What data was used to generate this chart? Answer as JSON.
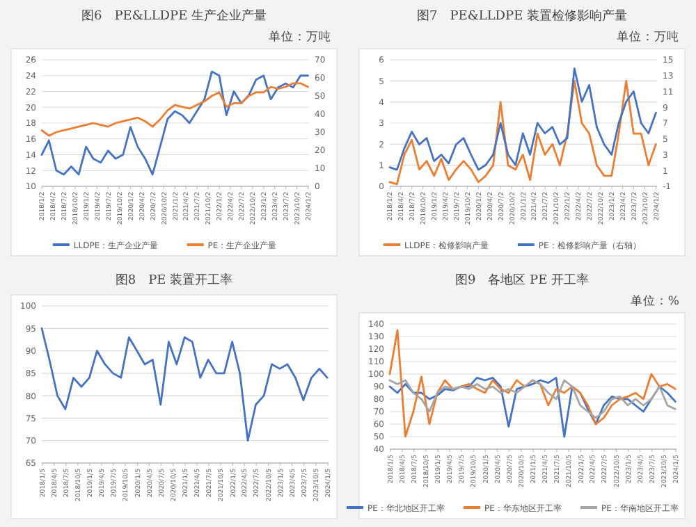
{
  "chart_data": [
    {
      "type": "line",
      "title": "图6　PE&LLDPE 生产企业产量",
      "subtitle": "单位：万吨",
      "grid": "y",
      "legend": "bottom",
      "x": [
        "2018-01",
        "2018-03",
        "2018-05",
        "2018-07",
        "2018-09",
        "2018-11",
        "2019-01",
        "2019-03",
        "2019-05",
        "2019-07",
        "2019-09",
        "2019-11",
        "2020-01",
        "2020-03",
        "2020-05",
        "2020-07",
        "2020-09",
        "2020-11",
        "2021-01",
        "2021-03",
        "2021-05",
        "2021-07",
        "2021-09",
        "2021-11",
        "2022-01",
        "2022-03",
        "2022-05",
        "2022-07",
        "2022-09",
        "2022-11",
        "2023-01",
        "2023-03",
        "2023-05",
        "2023-07",
        "2023-09",
        "2023-11",
        "2024-01"
      ],
      "xlim": [
        "2018-01-01",
        "2024-01-10"
      ],
      "xticks": [
        {
          "value": "2018-01-02",
          "label": "2018/1/2"
        },
        {
          "value": "2018-04-02",
          "label": "2018/4/2"
        },
        {
          "value": "2018-07-02",
          "label": "2018/7/2"
        },
        {
          "value": "2018-10-02",
          "label": "2018/10/2"
        },
        {
          "value": "2019-01-02",
          "label": "2019/1/2"
        },
        {
          "value": "2019-04-02",
          "label": "2019/4/2"
        },
        {
          "value": "2019-07-02",
          "label": "2019/7/2"
        },
        {
          "value": "2019-10-02",
          "label": "2019/10/2"
        },
        {
          "value": "2020-01-02",
          "label": "2020/1/2"
        },
        {
          "value": "2020-04-02",
          "label": "2020/4/2"
        },
        {
          "value": "2020-07-02",
          "label": "2020/7/2"
        },
        {
          "value": "2020-10-02",
          "label": "2020/10/2"
        },
        {
          "value": "2021-01-02",
          "label": "2021/1/2"
        },
        {
          "value": "2021-04-02",
          "label": "2021/4/2"
        },
        {
          "value": "2021-07-02",
          "label": "2021/7/2"
        },
        {
          "value": "2021-10-02",
          "label": "2021/10/2"
        },
        {
          "value": "2022-01-02",
          "label": "2022/1/2"
        },
        {
          "value": "2022-04-02",
          "label": "2022/4/2"
        },
        {
          "value": "2022-07-02",
          "label": "2022/7/2"
        },
        {
          "value": "2022-10-02",
          "label": "2022/10/2"
        },
        {
          "value": "2023-01-02",
          "label": "2023/1/2"
        },
        {
          "value": "2023-04-02",
          "label": "2023/4/2"
        },
        {
          "value": "2023-07-02",
          "label": "2023/7/2"
        },
        {
          "value": "2023-10-02",
          "label": "2023/10/2"
        },
        {
          "value": "2024-01-02",
          "label": "2024/1/2"
        }
      ],
      "ylim": [
        10,
        26
      ],
      "yticks": [
        10,
        12,
        14,
        16,
        18,
        20,
        22,
        24,
        26
      ],
      "y2lim": [
        0,
        70
      ],
      "y2ticks": [
        0,
        10,
        20,
        30,
        40,
        50,
        60,
        70
      ],
      "series": [
        {
          "name": "LLDPE：生产企业产量",
          "color": "#4472c4",
          "values": [
            14,
            15.8,
            12,
            11.5,
            12.5,
            11.5,
            15,
            13.5,
            13,
            14.5,
            13.5,
            14,
            17.5,
            15,
            13.5,
            11.5,
            15,
            18.5,
            19.5,
            19,
            18,
            19.5,
            21,
            24.5,
            24,
            19,
            22,
            20.5,
            21.5,
            23.5,
            24,
            21,
            22.5,
            23,
            22.5,
            24,
            24
          ]
        },
        {
          "name": "PE：生产企业产量",
          "color": "#ed7d31",
          "axis": "y2",
          "values": [
            31,
            28,
            30,
            31,
            32,
            33,
            34,
            35,
            34,
            33,
            35,
            36,
            37,
            38,
            36,
            33,
            37,
            42,
            45,
            44,
            43,
            45,
            47,
            50,
            52,
            44,
            46,
            46,
            50,
            52,
            52,
            55,
            54,
            55,
            57,
            57,
            55
          ]
        }
      ]
    },
    {
      "type": "line",
      "title": "图7　PE&LLDPE 装置检修影响产量",
      "subtitle": "单位：万吨",
      "grid": "y",
      "legend": "bottom",
      "x": [
        "2018-01",
        "2018-03",
        "2018-05",
        "2018-07",
        "2018-09",
        "2018-11",
        "2019-01",
        "2019-03",
        "2019-05",
        "2019-07",
        "2019-09",
        "2019-11",
        "2020-01",
        "2020-03",
        "2020-05",
        "2020-07",
        "2020-09",
        "2020-11",
        "2021-01",
        "2021-03",
        "2021-05",
        "2021-07",
        "2021-09",
        "2021-11",
        "2022-01",
        "2022-03",
        "2022-05",
        "2022-07",
        "2022-09",
        "2022-11",
        "2023-01",
        "2023-03",
        "2023-05",
        "2023-07",
        "2023-09",
        "2023-11",
        "2024-01"
      ],
      "xlim": [
        "2018-01-01",
        "2024-01-10"
      ],
      "xticks": [
        {
          "value": "2018-01-02",
          "label": "2018/1/2"
        },
        {
          "value": "2018-04-02",
          "label": "2018/4/2"
        },
        {
          "value": "2018-07-02",
          "label": "2018/7/2"
        },
        {
          "value": "2018-10-02",
          "label": "2018/10/2"
        },
        {
          "value": "2019-01-02",
          "label": "2019/1/2"
        },
        {
          "value": "2019-04-02",
          "label": "2019/4/2"
        },
        {
          "value": "2019-07-02",
          "label": "2019/7/2"
        },
        {
          "value": "2019-10-02",
          "label": "2019/10/2"
        },
        {
          "value": "2020-01-02",
          "label": "2020/1/2"
        },
        {
          "value": "2020-04-02",
          "label": "2020/4/2"
        },
        {
          "value": "2020-07-02",
          "label": "2020/7/2"
        },
        {
          "value": "2020-10-02",
          "label": "2020/10/2"
        },
        {
          "value": "2021-01-02",
          "label": "2021/1/2"
        },
        {
          "value": "2021-04-02",
          "label": "2021/4/2"
        },
        {
          "value": "2021-07-02",
          "label": "2021/7/2"
        },
        {
          "value": "2021-10-02",
          "label": "2021/10/2"
        },
        {
          "value": "2022-01-02",
          "label": "2022/1/2"
        },
        {
          "value": "2022-04-02",
          "label": "2022/4/2"
        },
        {
          "value": "2022-07-02",
          "label": "2022/7/2"
        },
        {
          "value": "2022-10-02",
          "label": "2022/10/2"
        },
        {
          "value": "2023-01-02",
          "label": "2023/1/2"
        },
        {
          "value": "2023-04-02",
          "label": "2023/4/2"
        },
        {
          "value": "2023-07-02",
          "label": "2023/7/2"
        },
        {
          "value": "2023-10-02",
          "label": "2023/10/2"
        },
        {
          "value": "2024-01-02",
          "label": "2024/1/2"
        }
      ],
      "ylim": [
        0,
        6
      ],
      "yticks": [
        0,
        1,
        2,
        3,
        4,
        5,
        6
      ],
      "y2lim": [
        -1,
        15
      ],
      "y2ticks": [
        -1,
        1,
        3,
        5,
        7,
        9,
        11,
        13,
        15
      ],
      "series": [
        {
          "name": "LLDPE：检修影响产量",
          "color": "#ed7d31",
          "values": [
            0.2,
            0.1,
            1.5,
            2.2,
            0.8,
            1.2,
            0.5,
            1.3,
            0.3,
            0.8,
            1.2,
            0.8,
            0.2,
            0.5,
            1.0,
            4.0,
            1.0,
            0.8,
            1.5,
            0.3,
            2.5,
            1.5,
            2.0,
            1.0,
            2.5,
            5.0,
            3.0,
            2.5,
            1.0,
            0.5,
            0.5,
            2.5,
            5.0,
            2.5,
            2.5,
            1.0,
            2.0
          ]
        },
        {
          "name": "PE：检修影响产量（右轴）",
          "color": "#4472c4",
          "axis": "y2",
          "values": [
            1.4,
            1.1,
            3.8,
            5.9,
            4.3,
            5.1,
            2.2,
            3,
            1.9,
            4.3,
            5.1,
            3,
            1.1,
            1.7,
            3,
            7,
            3,
            1.7,
            5.7,
            3,
            7,
            5.7,
            6.5,
            4.3,
            5.1,
            13.9,
            9.7,
            11.8,
            6.5,
            4.3,
            3,
            7,
            9.7,
            11,
            7,
            5.7,
            8.3
          ]
        }
      ]
    },
    {
      "type": "line",
      "title": "图8　PE 装置开工率",
      "grid": "y",
      "x": [
        "2018-01",
        "2018-03",
        "2018-05",
        "2018-07",
        "2018-09",
        "2018-11",
        "2019-01",
        "2019-03",
        "2019-05",
        "2019-07",
        "2019-09",
        "2019-11",
        "2020-01",
        "2020-03",
        "2020-05",
        "2020-07",
        "2020-09",
        "2020-11",
        "2021-01",
        "2021-03",
        "2021-05",
        "2021-07",
        "2021-09",
        "2021-11",
        "2022-01",
        "2022-03",
        "2022-05",
        "2022-07",
        "2022-09",
        "2022-11",
        "2023-01",
        "2023-03",
        "2023-05",
        "2023-07",
        "2023-09",
        "2023-11",
        "2024-01"
      ],
      "xlim": [
        "2018-01-01",
        "2024-01-10"
      ],
      "xticks": [
        {
          "value": "2018-01-05",
          "label": "2018/1/5"
        },
        {
          "value": "2018-04-05",
          "label": "2018/4/5"
        },
        {
          "value": "2018-07-05",
          "label": "2018/7/5"
        },
        {
          "value": "2018-10-05",
          "label": "2018/10/5"
        },
        {
          "value": "2019-01-05",
          "label": "2019/1/5"
        },
        {
          "value": "2019-04-05",
          "label": "2019/4/5"
        },
        {
          "value": "2019-07-05",
          "label": "2019/7/5"
        },
        {
          "value": "2019-10-05",
          "label": "2019/10/5"
        },
        {
          "value": "2020-01-05",
          "label": "2020/1/5"
        },
        {
          "value": "2020-04-05",
          "label": "2020/4/5"
        },
        {
          "value": "2020-07-05",
          "label": "2020/7/5"
        },
        {
          "value": "2020-10-05",
          "label": "2020/10/5"
        },
        {
          "value": "2021-01-05",
          "label": "2021/1/5"
        },
        {
          "value": "2021-04-05",
          "label": "2021/4/5"
        },
        {
          "value": "2021-07-05",
          "label": "2021/7/5"
        },
        {
          "value": "2021-10-05",
          "label": "2021/10/5"
        },
        {
          "value": "2022-01-05",
          "label": "2022/1/5"
        },
        {
          "value": "2022-04-05",
          "label": "2022/4/5"
        },
        {
          "value": "2022-07-05",
          "label": "2022/7/5"
        },
        {
          "value": "2022-10-05",
          "label": "2022/10/5"
        },
        {
          "value": "2023-01-05",
          "label": "2023/1/5"
        },
        {
          "value": "2023-04-05",
          "label": "2023/4/5"
        },
        {
          "value": "2023-07-05",
          "label": "2023/7/5"
        },
        {
          "value": "2023-10-05",
          "label": "2023/10/5"
        },
        {
          "value": "2024-01-05",
          "label": "2024/1/5"
        }
      ],
      "ylim": [
        65,
        100
      ],
      "yticks": [
        65,
        70,
        75,
        80,
        85,
        90,
        95,
        100
      ],
      "series": [
        {
          "color": "#4472c4",
          "values": [
            95,
            88,
            80,
            77,
            84,
            82,
            84,
            90,
            87,
            85,
            84,
            93,
            90,
            87,
            88,
            78,
            92,
            87,
            93,
            92,
            84,
            88,
            85,
            85,
            92,
            85,
            70,
            78,
            80,
            87,
            86,
            87,
            84,
            79,
            84,
            86,
            84
          ]
        }
      ]
    },
    {
      "type": "line",
      "title": "图9　各地区 PE 开工率",
      "subtitle": "单位：%",
      "grid": "y",
      "legend": "bottom",
      "x": [
        "2018-01",
        "2018-03",
        "2018-05",
        "2018-07",
        "2018-09",
        "2018-11",
        "2019-01",
        "2019-03",
        "2019-05",
        "2019-07",
        "2019-09",
        "2019-11",
        "2020-01",
        "2020-03",
        "2020-05",
        "2020-07",
        "2020-09",
        "2020-11",
        "2021-01",
        "2021-03",
        "2021-05",
        "2021-07",
        "2021-09",
        "2021-11",
        "2022-01",
        "2022-03",
        "2022-05",
        "2022-07",
        "2022-09",
        "2022-11",
        "2023-01",
        "2023-03",
        "2023-05",
        "2023-07",
        "2023-09",
        "2023-11",
        "2024-01"
      ],
      "xlim": [
        "2018-01-01",
        "2024-01-10"
      ],
      "xticks": [
        {
          "value": "2018-01-05",
          "label": "2018/1/5"
        },
        {
          "value": "2018-04-05",
          "label": "2018/4/5"
        },
        {
          "value": "2018-07-05",
          "label": "2018/7/5"
        },
        {
          "value": "2018-10-05",
          "label": "2018/10/5"
        },
        {
          "value": "2019-01-05",
          "label": "2019/1/5"
        },
        {
          "value": "2019-04-05",
          "label": "2019/4/5"
        },
        {
          "value": "2019-07-05",
          "label": "2019/7/5"
        },
        {
          "value": "2019-10-05",
          "label": "2019/10/5"
        },
        {
          "value": "2020-01-05",
          "label": "2020/1/5"
        },
        {
          "value": "2020-04-05",
          "label": "2020/4/5"
        },
        {
          "value": "2020-07-05",
          "label": "2020/7/5"
        },
        {
          "value": "2020-10-05",
          "label": "2020/10/5"
        },
        {
          "value": "2021-01-05",
          "label": "2021/1/5"
        },
        {
          "value": "2021-04-05",
          "label": "2021/4/5"
        },
        {
          "value": "2021-07-05",
          "label": "2021/7/5"
        },
        {
          "value": "2021-10-05",
          "label": "2021/10/5"
        },
        {
          "value": "2022-01-05",
          "label": "2022/1/5"
        },
        {
          "value": "2022-04-05",
          "label": "2022/4/5"
        },
        {
          "value": "2022-07-05",
          "label": "2022/7/5"
        },
        {
          "value": "2022-10-05",
          "label": "2022/10/5"
        },
        {
          "value": "2023-01-05",
          "label": "2023/1/5"
        },
        {
          "value": "2023-04-05",
          "label": "2023/4/5"
        },
        {
          "value": "2023-07-05",
          "label": "2023/7/5"
        },
        {
          "value": "2023-10-05",
          "label": "2023/10/5"
        },
        {
          "value": "2024-01-05",
          "label": "2024/1/5"
        }
      ],
      "ylim": [
        40,
        140
      ],
      "yticks": [
        40,
        50,
        60,
        70,
        80,
        90,
        100,
        110,
        120,
        130,
        140
      ],
      "series": [
        {
          "name": "PE：华北地区开工率",
          "color": "#4472c4",
          "values": [
            90,
            85,
            92,
            85,
            85,
            80,
            83,
            88,
            87,
            90,
            90,
            97,
            95,
            97,
            90,
            58,
            88,
            90,
            92,
            95,
            93,
            97,
            50,
            90,
            85,
            72,
            60,
            75,
            82,
            80,
            80,
            75,
            70,
            80,
            90,
            85,
            78
          ]
        },
        {
          "name": "PE：华东地区开工率",
          "color": "#ed7d31",
          "values": [
            100,
            135,
            50,
            70,
            98,
            60,
            85,
            95,
            88,
            90,
            92,
            88,
            85,
            95,
            88,
            85,
            95,
            90,
            95,
            92,
            75,
            88,
            85,
            90,
            85,
            75,
            60,
            65,
            75,
            80,
            82,
            85,
            80,
            100,
            90,
            92,
            88
          ]
        },
        {
          "name": "PE：华南地区开工率",
          "color": "#a5a5a5",
          "values": [
            95,
            92,
            95,
            85,
            80,
            70,
            85,
            90,
            88,
            90,
            88,
            92,
            88,
            90,
            85,
            88,
            85,
            90,
            95,
            92,
            85,
            80,
            95,
            90,
            75,
            70,
            65,
            70,
            80,
            82,
            75,
            80,
            75,
            80,
            90,
            75,
            72
          ]
        }
      ]
    }
  ]
}
